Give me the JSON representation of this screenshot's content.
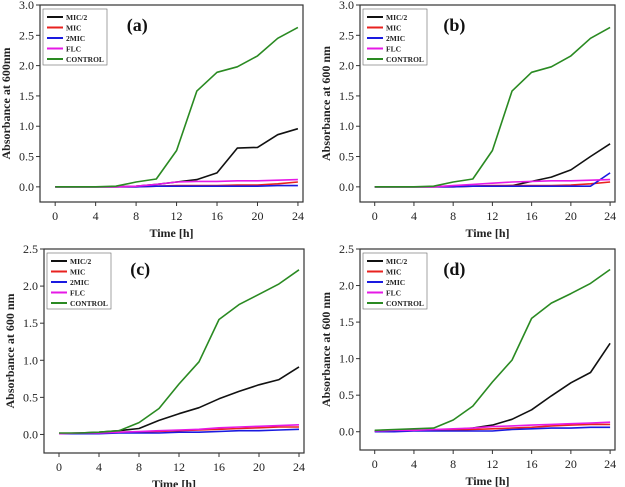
{
  "chart_data": [
    {
      "type": "line",
      "panel_label": "(a)",
      "xlabel": "Time [h]",
      "ylabel": "Absorbance at 600nm",
      "xlim": [
        -1.5,
        24.5
      ],
      "ylim": [
        -0.25,
        3.0
      ],
      "xticks": [
        0,
        4,
        8,
        12,
        16,
        20,
        24
      ],
      "yticks": [
        0.0,
        0.5,
        1.0,
        1.5,
        2.0,
        2.5,
        3.0
      ],
      "legend_position": "top-left",
      "x": [
        0,
        2,
        4,
        6,
        8,
        10,
        12,
        14,
        16,
        18,
        20,
        22,
        24
      ],
      "series": [
        {
          "name": "MIC/2",
          "color": "#111111",
          "values": [
            0,
            0,
            0,
            0,
            0.01,
            0.04,
            0.08,
            0.12,
            0.23,
            0.64,
            0.65,
            0.86,
            0.96
          ]
        },
        {
          "name": "MIC",
          "color": "#e8221f",
          "values": [
            0,
            0,
            0,
            0,
            0,
            0.01,
            0.02,
            0.02,
            0.02,
            0.03,
            0.03,
            0.05,
            0.08
          ]
        },
        {
          "name": "2MIC",
          "color": "#1a1ae0",
          "values": [
            0,
            0,
            0,
            0,
            0,
            0.01,
            0.01,
            0.01,
            0.01,
            0.01,
            0.01,
            0.02,
            0.02
          ]
        },
        {
          "name": "FLC",
          "color": "#e619e6",
          "values": [
            0,
            0,
            0,
            0,
            0.01,
            0.04,
            0.08,
            0.09,
            0.09,
            0.1,
            0.1,
            0.11,
            0.12
          ]
        },
        {
          "name": "CONTROL",
          "color": "#2a8a22",
          "values": [
            0,
            0,
            0,
            0.01,
            0.08,
            0.13,
            0.6,
            1.58,
            1.89,
            1.98,
            2.16,
            2.45,
            2.63
          ]
        }
      ]
    },
    {
      "type": "line",
      "panel_label": "(b)",
      "xlabel": "Time [h]",
      "ylabel": "Absorbance at 600 nm",
      "xlim": [
        -1.5,
        24.5
      ],
      "ylim": [
        -0.25,
        3.0
      ],
      "xticks": [
        0,
        4,
        8,
        12,
        16,
        20,
        24
      ],
      "yticks": [
        0.0,
        0.5,
        1.0,
        1.5,
        2.0,
        2.5,
        3.0
      ],
      "legend_position": "top-left",
      "x": [
        0,
        2,
        4,
        6,
        8,
        10,
        12,
        14,
        16,
        18,
        20,
        22,
        24
      ],
      "series": [
        {
          "name": "MIC/2",
          "color": "#111111",
          "values": [
            0,
            0,
            0,
            0,
            0.01,
            0.01,
            0.01,
            0.02,
            0.09,
            0.16,
            0.28,
            0.5,
            0.71
          ]
        },
        {
          "name": "MIC",
          "color": "#e8221f",
          "values": [
            0,
            0,
            0,
            0,
            0,
            0.01,
            0.02,
            0.02,
            0.02,
            0.02,
            0.03,
            0.05,
            0.08
          ]
        },
        {
          "name": "2MIC",
          "color": "#1a1ae0",
          "values": [
            0,
            0,
            0,
            0,
            0,
            0.01,
            0.01,
            0.01,
            0.01,
            0.01,
            0.01,
            0.01,
            0.23
          ]
        },
        {
          "name": "FLC",
          "color": "#e619e6",
          "values": [
            0,
            0,
            0,
            0,
            0.02,
            0.04,
            0.06,
            0.08,
            0.09,
            0.1,
            0.1,
            0.11,
            0.12
          ]
        },
        {
          "name": "CONTROL",
          "color": "#2a8a22",
          "values": [
            0,
            0,
            0,
            0.01,
            0.08,
            0.13,
            0.6,
            1.58,
            1.89,
            1.98,
            2.16,
            2.45,
            2.63
          ]
        }
      ]
    },
    {
      "type": "line",
      "panel_label": "(c)",
      "xlabel": "Time [h]",
      "ylabel": "Absorbance at 600 nm",
      "xlim": [
        -1.5,
        24.5
      ],
      "ylim": [
        -0.25,
        2.5
      ],
      "xticks": [
        0,
        4,
        8,
        12,
        16,
        20,
        24
      ],
      "yticks": [
        0.0,
        0.5,
        1.0,
        1.5,
        2.0,
        2.5
      ],
      "legend_position": "top-left",
      "x": [
        0,
        2,
        4,
        6,
        8,
        10,
        12,
        14,
        16,
        18,
        20,
        22,
        24
      ],
      "series": [
        {
          "name": "MIC/2",
          "color": "#111111",
          "values": [
            0.01,
            0.02,
            0.03,
            0.05,
            0.08,
            0.19,
            0.28,
            0.36,
            0.48,
            0.58,
            0.67,
            0.74,
            0.91
          ]
        },
        {
          "name": "MIC",
          "color": "#e8221f",
          "values": [
            0.01,
            0.01,
            0.02,
            0.03,
            0.03,
            0.04,
            0.05,
            0.06,
            0.07,
            0.08,
            0.09,
            0.1,
            0.1
          ]
        },
        {
          "name": "2MIC",
          "color": "#1a1ae0",
          "values": [
            0.01,
            0.01,
            0.01,
            0.02,
            0.02,
            0.02,
            0.03,
            0.03,
            0.04,
            0.05,
            0.05,
            0.06,
            0.07
          ]
        },
        {
          "name": "FLC",
          "color": "#e619e6",
          "values": [
            0.01,
            0.02,
            0.02,
            0.03,
            0.04,
            0.05,
            0.06,
            0.07,
            0.09,
            0.1,
            0.11,
            0.12,
            0.13
          ]
        },
        {
          "name": "CONTROL",
          "color": "#2a8a22",
          "values": [
            0.02,
            0.02,
            0.03,
            0.05,
            0.16,
            0.35,
            0.68,
            0.98,
            1.55,
            1.75,
            1.89,
            2.03,
            2.22
          ]
        }
      ]
    },
    {
      "type": "line",
      "panel_label": "(d)",
      "xlabel": "Time [h]",
      "ylabel": "Absorbance at 600 nm",
      "xlim": [
        -1.5,
        24.5
      ],
      "ylim": [
        -0.25,
        2.5
      ],
      "xticks": [
        0,
        4,
        8,
        12,
        16,
        20,
        24
      ],
      "yticks": [
        0.0,
        0.5,
        1.0,
        1.5,
        2.0,
        2.5
      ],
      "legend_position": "top-left",
      "x": [
        0,
        2,
        4,
        6,
        8,
        10,
        12,
        14,
        16,
        18,
        20,
        22,
        24
      ],
      "series": [
        {
          "name": "MIC/2",
          "color": "#111111",
          "values": [
            0.01,
            0.01,
            0.02,
            0.02,
            0.03,
            0.05,
            0.09,
            0.17,
            0.3,
            0.49,
            0.67,
            0.81,
            1.21
          ]
        },
        {
          "name": "MIC",
          "color": "#e8221f",
          "values": [
            0.01,
            0.01,
            0.02,
            0.02,
            0.02,
            0.03,
            0.04,
            0.05,
            0.06,
            0.08,
            0.09,
            0.1,
            0.1
          ]
        },
        {
          "name": "2MIC",
          "color": "#1a1ae0",
          "values": [
            0,
            0,
            0.01,
            0.01,
            0.01,
            0.01,
            0.01,
            0.03,
            0.04,
            0.05,
            0.05,
            0.06,
            0.06
          ]
        },
        {
          "name": "FLC",
          "color": "#e619e6",
          "values": [
            0.01,
            0.02,
            0.02,
            0.03,
            0.04,
            0.05,
            0.07,
            0.08,
            0.09,
            0.1,
            0.11,
            0.12,
            0.13
          ]
        },
        {
          "name": "CONTROL",
          "color": "#2a8a22",
          "values": [
            0.02,
            0.03,
            0.04,
            0.05,
            0.16,
            0.35,
            0.68,
            0.98,
            1.55,
            1.76,
            1.89,
            2.03,
            2.22
          ]
        }
      ]
    }
  ]
}
